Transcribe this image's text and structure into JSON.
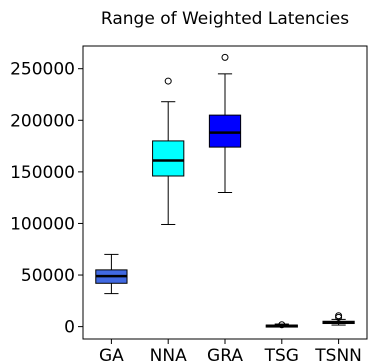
{
  "chart_data": {
    "type": "box",
    "title": "Range of Weighted Latencies",
    "xlabel": "",
    "ylabel": "",
    "ylim": [
      -12000,
      272000
    ],
    "yticks": [
      0,
      50000,
      100000,
      150000,
      200000,
      250000
    ],
    "grid": false,
    "legend": "none",
    "series": [
      {
        "name": "GA",
        "color": "#4169e1",
        "whisker_low": 32000,
        "q1": 42000,
        "median": 49000,
        "q3": 55000,
        "whisker_high": 70000,
        "outliers": []
      },
      {
        "name": "NNA",
        "color": "#00ffff",
        "whisker_low": 99000,
        "q1": 146000,
        "median": 161000,
        "q3": 180000,
        "whisker_high": 218000,
        "outliers": [
          238000
        ]
      },
      {
        "name": "GRA",
        "color": "#0000ff",
        "whisker_low": 130000,
        "q1": 174000,
        "median": 188000,
        "q3": 205000,
        "whisker_high": 245000,
        "outliers": [
          261000
        ]
      },
      {
        "name": "TSG",
        "color": "#000000",
        "whisker_low": 0,
        "q1": 400,
        "median": 900,
        "q3": 1500,
        "whisker_high": 2500,
        "outliers": [
          1800
        ]
      },
      {
        "name": "TSNN",
        "color": "#000000",
        "whisker_low": 1500,
        "q1": 3000,
        "median": 4000,
        "q3": 5200,
        "whisker_high": 7000,
        "outliers": [
          9000,
          10500
        ]
      }
    ]
  }
}
